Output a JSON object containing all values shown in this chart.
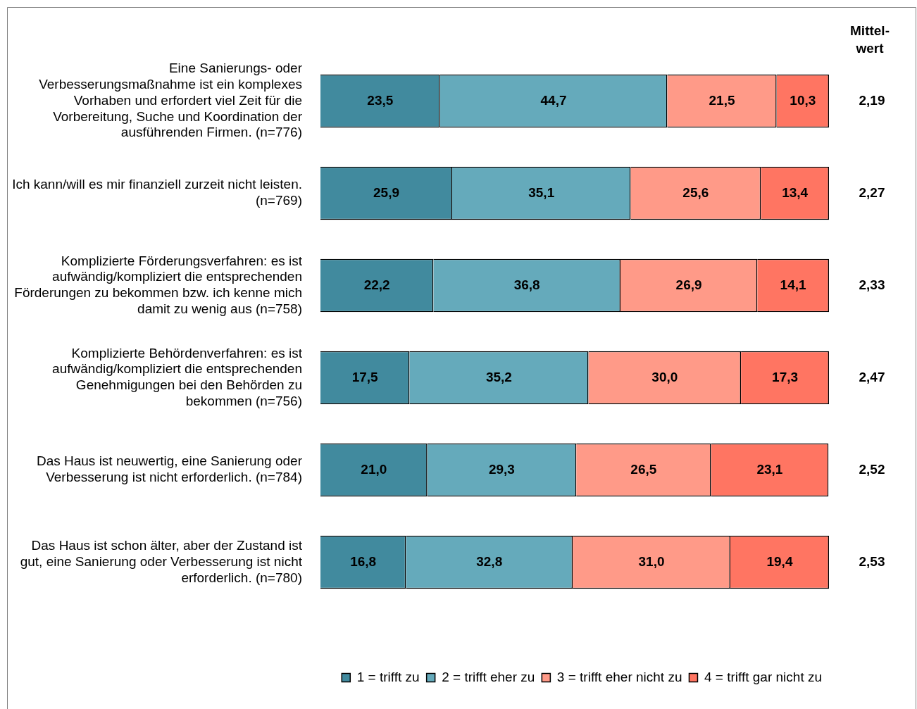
{
  "chart_data": {
    "type": "bar",
    "orientation": "horizontal",
    "stacked": true,
    "legend": "bottom",
    "tick_labels": "y",
    "categories": [
      "Eine Sanierungs- oder Verbesserungsmaßnahme ist ein komplexes Vorhaben und erfordert viel Zeit für die Vorbereitung, Suche und Koordination der ausführenden Firmen. (n=776)",
      "Ich kann/will es mir finanziell zurzeit nicht leisten. (n=769)",
      "Komplizierte Förderungsverfahren: es ist aufwändig/kompliziert die entsprechenden Förderungen zu bekommen bzw. ich kenne mich damit zu wenig aus (n=758)",
      "Komplizierte Behördenverfahren: es ist aufwändig/kompliziert die entsprechenden Genehmigungen bei den Behörden zu bekommen (n=756)",
      "Das Haus ist neuwertig, eine Sanierung oder Verbesserung ist nicht erforderlich. (n=784)",
      "Das Haus ist schon älter, aber der Zustand ist gut, eine Sanierung oder Verbesserung ist nicht erforderlich. (n=780)"
    ],
    "series": [
      {
        "name": "1 = trifft zu",
        "color": "#418a9e",
        "values": [
          23.5,
          25.9,
          22.2,
          17.5,
          21.0,
          16.8
        ],
        "value_labels": [
          "23,5",
          "25,9",
          "22,2",
          "17,5",
          "21,0",
          "16,8"
        ]
      },
      {
        "name": "2 = trifft eher zu",
        "color": "#65aabb",
        "values": [
          44.7,
          35.1,
          36.8,
          35.2,
          29.3,
          32.8
        ],
        "value_labels": [
          "44,7",
          "35,1",
          "36,8",
          "35,2",
          "29,3",
          "32,8"
        ]
      },
      {
        "name": "3 = trifft eher nicht zu",
        "color": "#ff9a88",
        "values": [
          21.5,
          25.6,
          26.9,
          30.0,
          26.5,
          31.0
        ],
        "value_labels": [
          "21,5",
          "25,6",
          "26,9",
          "30,0",
          "26,5",
          "31,0"
        ]
      },
      {
        "name": "4 = trifft gar nicht zu",
        "color": "#ff7562",
        "values": [
          10.3,
          13.4,
          14.1,
          17.3,
          23.1,
          19.4
        ],
        "value_labels": [
          "10,3",
          "13,4",
          "14,1",
          "17,3",
          "23,1",
          "19,4"
        ]
      }
    ],
    "annotations": [
      "Mittel-wert",
      "2,19",
      "2,27",
      "2,33",
      "2,47",
      "2,52",
      "2,53"
    ]
  }
}
